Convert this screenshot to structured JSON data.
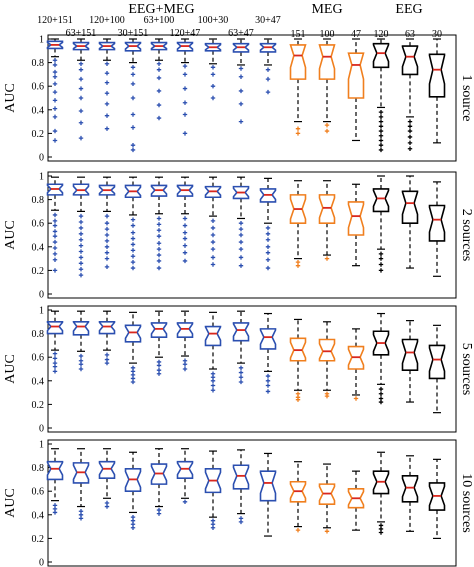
{
  "chart_data": {
    "type": "boxplot",
    "colors": {
      "eeg_meg": "#2b4fb0",
      "meg": "#f07f1e",
      "eeg": "#000000",
      "median": "#d9281e",
      "outlier_eeg_meg": "#2b4fb0"
    },
    "group_headers": [
      {
        "label": "EEG+MEG",
        "first": 0,
        "last": 8
      },
      {
        "label": "MEG",
        "first": 9,
        "last": 11
      },
      {
        "label": "EEG",
        "first": 12,
        "last": 14
      }
    ],
    "conditions": [
      {
        "label": "120+151",
        "group": "eeg_meg"
      },
      {
        "label": "63+151",
        "group": "eeg_meg"
      },
      {
        "label": "120+100",
        "group": "eeg_meg"
      },
      {
        "label": "30+151",
        "group": "eeg_meg"
      },
      {
        "label": "63+100",
        "group": "eeg_meg"
      },
      {
        "label": "120+47",
        "group": "eeg_meg"
      },
      {
        "label": "100+30",
        "group": "eeg_meg"
      },
      {
        "label": "63+47",
        "group": "eeg_meg"
      },
      {
        "label": "30+47",
        "group": "eeg_meg"
      },
      {
        "label": "151",
        "group": "meg"
      },
      {
        "label": "100",
        "group": "meg"
      },
      {
        "label": "47",
        "group": "meg"
      },
      {
        "label": "120",
        "group": "eeg"
      },
      {
        "label": "63",
        "group": "eeg"
      },
      {
        "label": "30",
        "group": "eeg"
      }
    ],
    "ylabel": "AUC",
    "ylim": [
      0,
      1
    ],
    "yticks": [
      "0",
      "0.2",
      "0.4",
      "0.6",
      "0.8",
      "1"
    ],
    "panels": [
      {
        "label": "1 source",
        "boxes": [
          {
            "q1": 0.92,
            "median": 0.95,
            "q3": 0.98,
            "wlo": 0.85,
            "whi": 1.0,
            "outliers": [
              0.82,
              0.78,
              0.72,
              0.68,
              0.62,
              0.55,
              0.48,
              0.41,
              0.34,
              0.22,
              0.14
            ]
          },
          {
            "q1": 0.91,
            "median": 0.94,
            "q3": 0.97,
            "wlo": 0.82,
            "whi": 1.0,
            "outliers": [
              0.79,
              0.74,
              0.66,
              0.58,
              0.5,
              0.39,
              0.29,
              0.16
            ]
          },
          {
            "q1": 0.91,
            "median": 0.94,
            "q3": 0.97,
            "wlo": 0.82,
            "whi": 1.0,
            "outliers": [
              0.79,
              0.71,
              0.63,
              0.54,
              0.45,
              0.35,
              0.24
            ]
          },
          {
            "q1": 0.9,
            "median": 0.94,
            "q3": 0.97,
            "wlo": 0.8,
            "whi": 1.0,
            "outliers": [
              0.76,
              0.7,
              0.62,
              0.5,
              0.36,
              0.25,
              0.1,
              0.06
            ]
          },
          {
            "q1": 0.91,
            "median": 0.94,
            "q3": 0.97,
            "wlo": 0.82,
            "whi": 1.0,
            "outliers": [
              0.79,
              0.74,
              0.67,
              0.56,
              0.44,
              0.33
            ]
          },
          {
            "q1": 0.9,
            "median": 0.94,
            "q3": 0.97,
            "wlo": 0.8,
            "whi": 1.0,
            "outliers": [
              0.77,
              0.7,
              0.58,
              0.46,
              0.36,
              0.2
            ]
          },
          {
            "q1": 0.9,
            "median": 0.93,
            "q3": 0.96,
            "wlo": 0.79,
            "whi": 1.0,
            "outliers": [
              0.76,
              0.7,
              0.6,
              0.5
            ]
          },
          {
            "q1": 0.89,
            "median": 0.93,
            "q3": 0.96,
            "wlo": 0.78,
            "whi": 1.0,
            "outliers": [
              0.75,
              0.68,
              0.56,
              0.45,
              0.3
            ]
          },
          {
            "q1": 0.89,
            "median": 0.93,
            "q3": 0.96,
            "wlo": 0.78,
            "whi": 1.0,
            "outliers": [
              0.74,
              0.66,
              0.55
            ]
          },
          {
            "q1": 0.66,
            "median": 0.86,
            "q3": 0.95,
            "wlo": 0.3,
            "whi": 1.0,
            "outliers": [
              0.24,
              0.2
            ]
          },
          {
            "q1": 0.66,
            "median": 0.85,
            "q3": 0.95,
            "wlo": 0.3,
            "whi": 1.0,
            "outliers": [
              0.27,
              0.22
            ]
          },
          {
            "q1": 0.5,
            "median": 0.78,
            "q3": 0.88,
            "wlo": 0.14,
            "whi": 1.0,
            "outliers": []
          },
          {
            "q1": 0.76,
            "median": 0.88,
            "q3": 0.96,
            "wlo": 0.42,
            "whi": 1.0,
            "outliers": [
              0.38,
              0.34,
              0.3,
              0.26,
              0.22,
              0.18,
              0.14,
              0.1,
              0.06
            ]
          },
          {
            "q1": 0.7,
            "median": 0.85,
            "q3": 0.94,
            "wlo": 0.34,
            "whi": 1.0,
            "outliers": [
              0.3,
              0.26,
              0.22,
              0.17,
              0.12,
              0.07
            ]
          },
          {
            "q1": 0.51,
            "median": 0.74,
            "q3": 0.87,
            "wlo": 0.12,
            "whi": 1.0,
            "outliers": []
          }
        ]
      },
      {
        "label": "2 sources",
        "boxes": [
          {
            "q1": 0.84,
            "median": 0.89,
            "q3": 0.93,
            "wlo": 0.71,
            "whi": 0.99,
            "outliers": [
              0.67,
              0.62,
              0.58,
              0.53,
              0.49,
              0.44,
              0.39,
              0.34,
              0.29,
              0.2
            ]
          },
          {
            "q1": 0.84,
            "median": 0.88,
            "q3": 0.93,
            "wlo": 0.7,
            "whi": 0.99,
            "outliers": [
              0.66,
              0.61,
              0.56,
              0.51,
              0.46,
              0.41,
              0.36,
              0.31,
              0.26,
              0.21,
              0.16
            ]
          },
          {
            "q1": 0.84,
            "median": 0.88,
            "q3": 0.92,
            "wlo": 0.7,
            "whi": 0.99,
            "outliers": [
              0.66,
              0.6,
              0.55,
              0.5,
              0.45,
              0.4,
              0.35,
              0.3,
              0.23
            ]
          },
          {
            "q1": 0.82,
            "median": 0.87,
            "q3": 0.92,
            "wlo": 0.67,
            "whi": 0.99,
            "outliers": [
              0.63,
              0.58,
              0.52,
              0.47,
              0.42,
              0.37,
              0.32,
              0.27,
              0.22
            ]
          },
          {
            "q1": 0.83,
            "median": 0.88,
            "q3": 0.92,
            "wlo": 0.68,
            "whi": 0.99,
            "outliers": [
              0.64,
              0.59,
              0.54,
              0.49,
              0.43,
              0.38,
              0.33,
              0.28,
              0.22
            ]
          },
          {
            "q1": 0.83,
            "median": 0.88,
            "q3": 0.92,
            "wlo": 0.68,
            "whi": 0.99,
            "outliers": [
              0.64,
              0.58,
              0.52,
              0.47,
              0.41,
              0.35,
              0.28
            ]
          },
          {
            "q1": 0.82,
            "median": 0.87,
            "q3": 0.91,
            "wlo": 0.66,
            "whi": 0.99,
            "outliers": [
              0.62,
              0.56,
              0.5,
              0.44,
              0.38,
              0.31,
              0.25
            ]
          },
          {
            "q1": 0.81,
            "median": 0.86,
            "q3": 0.91,
            "wlo": 0.64,
            "whi": 0.99,
            "outliers": [
              0.6,
              0.55,
              0.5,
              0.44,
              0.38,
              0.31,
              0.24
            ]
          },
          {
            "q1": 0.78,
            "median": 0.84,
            "q3": 0.89,
            "wlo": 0.6,
            "whi": 0.98,
            "outliers": [
              0.56,
              0.51,
              0.46,
              0.4,
              0.35,
              0.29,
              0.22
            ]
          },
          {
            "q1": 0.6,
            "median": 0.72,
            "q3": 0.84,
            "wlo": 0.3,
            "whi": 0.96,
            "outliers": [
              0.27,
              0.24
            ]
          },
          {
            "q1": 0.6,
            "median": 0.73,
            "q3": 0.84,
            "wlo": 0.33,
            "whi": 0.96,
            "outliers": [
              0.3
            ]
          },
          {
            "q1": 0.5,
            "median": 0.66,
            "q3": 0.78,
            "wlo": 0.24,
            "whi": 0.93,
            "outliers": []
          },
          {
            "q1": 0.7,
            "median": 0.81,
            "q3": 0.89,
            "wlo": 0.38,
            "whi": 1.0,
            "outliers": [
              0.34,
              0.3,
              0.25,
              0.2
            ]
          },
          {
            "q1": 0.6,
            "median": 0.77,
            "q3": 0.87,
            "wlo": 0.22,
            "whi": 1.0,
            "outliers": []
          },
          {
            "q1": 0.45,
            "median": 0.63,
            "q3": 0.75,
            "wlo": 0.15,
            "whi": 0.95,
            "outliers": []
          }
        ]
      },
      {
        "label": "5 sources",
        "boxes": [
          {
            "q1": 0.8,
            "median": 0.86,
            "q3": 0.9,
            "wlo": 0.66,
            "whi": 0.99,
            "outliers": [
              0.63,
              0.59,
              0.55,
              0.52,
              0.48
            ]
          },
          {
            "q1": 0.79,
            "median": 0.86,
            "q3": 0.9,
            "wlo": 0.65,
            "whi": 0.99,
            "outliers": [
              0.61,
              0.57,
              0.54,
              0.5
            ]
          },
          {
            "q1": 0.8,
            "median": 0.86,
            "q3": 0.9,
            "wlo": 0.66,
            "whi": 0.99,
            "outliers": [
              0.62,
              0.58,
              0.55
            ]
          },
          {
            "q1": 0.73,
            "median": 0.81,
            "q3": 0.87,
            "wlo": 0.55,
            "whi": 0.98,
            "outliers": [
              0.51,
              0.48,
              0.45,
              0.42,
              0.39
            ]
          },
          {
            "q1": 0.77,
            "median": 0.84,
            "q3": 0.89,
            "wlo": 0.6,
            "whi": 0.99,
            "outliers": [
              0.56,
              0.53,
              0.49,
              0.46
            ]
          },
          {
            "q1": 0.77,
            "median": 0.84,
            "q3": 0.89,
            "wlo": 0.61,
            "whi": 0.99,
            "outliers": [
              0.57,
              0.54,
              0.5
            ]
          },
          {
            "q1": 0.7,
            "median": 0.8,
            "q3": 0.86,
            "wlo": 0.5,
            "whi": 0.98,
            "outliers": [
              0.46,
              0.43,
              0.4,
              0.36,
              0.32
            ]
          },
          {
            "q1": 0.74,
            "median": 0.83,
            "q3": 0.89,
            "wlo": 0.55,
            "whi": 0.99,
            "outliers": [
              0.51,
              0.47,
              0.43,
              0.39
            ]
          },
          {
            "q1": 0.67,
            "median": 0.77,
            "q3": 0.84,
            "wlo": 0.48,
            "whi": 0.97,
            "outliers": [
              0.44,
              0.4,
              0.36,
              0.31
            ]
          },
          {
            "q1": 0.57,
            "median": 0.66,
            "q3": 0.76,
            "wlo": 0.32,
            "whi": 0.92,
            "outliers": [
              0.29,
              0.26,
              0.24
            ]
          },
          {
            "q1": 0.57,
            "median": 0.65,
            "q3": 0.75,
            "wlo": 0.32,
            "whi": 0.9,
            "outliers": [
              0.29,
              0.27
            ]
          },
          {
            "q1": 0.5,
            "median": 0.6,
            "q3": 0.69,
            "wlo": 0.28,
            "whi": 0.84,
            "outliers": [
              0.25
            ]
          },
          {
            "q1": 0.62,
            "median": 0.72,
            "q3": 0.82,
            "wlo": 0.37,
            "whi": 0.97,
            "outliers": [
              0.33,
              0.29,
              0.25,
              0.22
            ]
          },
          {
            "q1": 0.49,
            "median": 0.64,
            "q3": 0.75,
            "wlo": 0.22,
            "whi": 0.91,
            "outliers": []
          },
          {
            "q1": 0.42,
            "median": 0.58,
            "q3": 0.7,
            "wlo": 0.13,
            "whi": 0.87,
            "outliers": []
          }
        ]
      },
      {
        "label": "10 sources",
        "boxes": [
          {
            "q1": 0.7,
            "median": 0.79,
            "q3": 0.85,
            "wlo": 0.52,
            "whi": 0.96,
            "outliers": [
              0.48,
              0.45,
              0.42
            ]
          },
          {
            "q1": 0.67,
            "median": 0.76,
            "q3": 0.84,
            "wlo": 0.47,
            "whi": 0.96,
            "outliers": [
              0.43,
              0.4,
              0.37
            ]
          },
          {
            "q1": 0.71,
            "median": 0.79,
            "q3": 0.85,
            "wlo": 0.54,
            "whi": 0.96,
            "outliers": [
              0.5,
              0.47
            ]
          },
          {
            "q1": 0.6,
            "median": 0.7,
            "q3": 0.79,
            "wlo": 0.42,
            "whi": 0.93,
            "outliers": [
              0.38,
              0.35,
              0.32,
              0.29
            ]
          },
          {
            "q1": 0.66,
            "median": 0.75,
            "q3": 0.83,
            "wlo": 0.47,
            "whi": 0.96,
            "outliers": [
              0.44,
              0.41
            ]
          },
          {
            "q1": 0.71,
            "median": 0.79,
            "q3": 0.85,
            "wlo": 0.54,
            "whi": 0.96,
            "outliers": [
              0.51
            ]
          },
          {
            "q1": 0.59,
            "median": 0.69,
            "q3": 0.79,
            "wlo": 0.38,
            "whi": 0.94,
            "outliers": [
              0.35,
              0.32,
              0.29
            ]
          },
          {
            "q1": 0.62,
            "median": 0.73,
            "q3": 0.82,
            "wlo": 0.41,
            "whi": 0.95,
            "outliers": [
              0.37,
              0.34
            ]
          },
          {
            "q1": 0.52,
            "median": 0.67,
            "q3": 0.77,
            "wlo": 0.22,
            "whi": 0.92,
            "outliers": []
          },
          {
            "q1": 0.51,
            "median": 0.6,
            "q3": 0.68,
            "wlo": 0.3,
            "whi": 0.85,
            "outliers": [
              0.27
            ]
          },
          {
            "q1": 0.49,
            "median": 0.58,
            "q3": 0.66,
            "wlo": 0.29,
            "whi": 0.83,
            "outliers": [
              0.26
            ]
          },
          {
            "q1": 0.46,
            "median": 0.54,
            "q3": 0.62,
            "wlo": 0.27,
            "whi": 0.77,
            "outliers": []
          },
          {
            "q1": 0.58,
            "median": 0.68,
            "q3": 0.77,
            "wlo": 0.34,
            "whi": 0.93,
            "outliers": [
              0.31,
              0.28,
              0.25
            ]
          },
          {
            "q1": 0.51,
            "median": 0.63,
            "q3": 0.73,
            "wlo": 0.26,
            "whi": 0.9,
            "outliers": []
          },
          {
            "q1": 0.44,
            "median": 0.56,
            "q3": 0.67,
            "wlo": 0.2,
            "whi": 0.87,
            "outliers": []
          }
        ]
      }
    ]
  }
}
